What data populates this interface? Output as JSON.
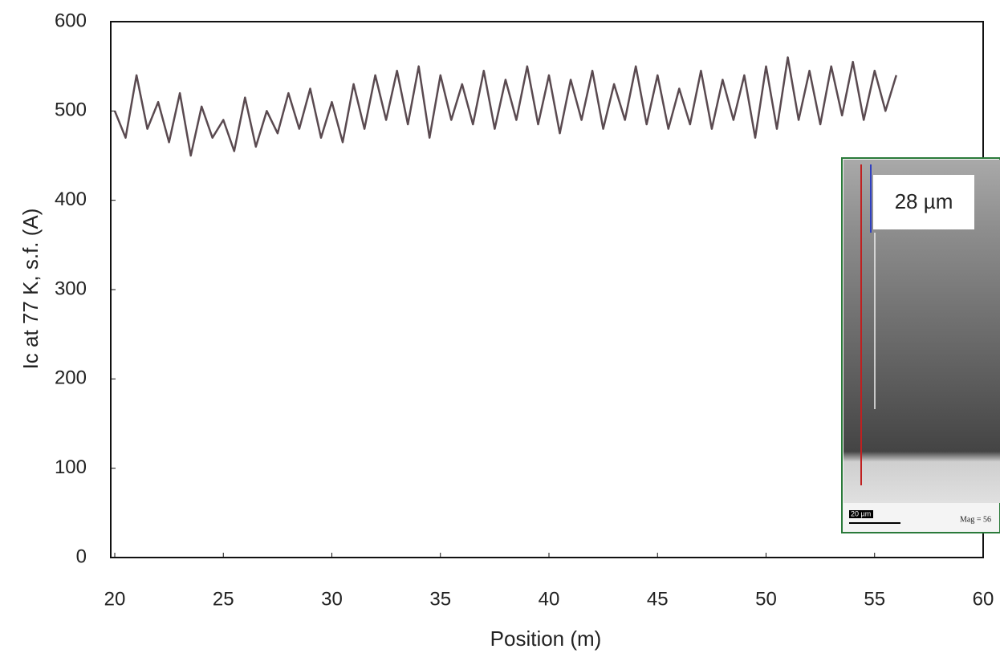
{
  "chart_data": {
    "type": "line",
    "x_label": "Position (m)",
    "y_label": "Ic at 77 K, s.f. (A)",
    "x": [
      20,
      20.5,
      21,
      21.5,
      22,
      22.5,
      23,
      23.5,
      24,
      24.5,
      25,
      25.5,
      26,
      26.5,
      27,
      27.5,
      28,
      28.5,
      29,
      29.5,
      30,
      30.5,
      31,
      31.5,
      32,
      32.5,
      33,
      33.5,
      34,
      34.5,
      35,
      35.5,
      36,
      36.5,
      37,
      37.5,
      38,
      38.5,
      39,
      39.5,
      40,
      40.5,
      41,
      41.5,
      42,
      42.5,
      43,
      43.5,
      44,
      44.5,
      45,
      45.5,
      46,
      46.5,
      47,
      47.5,
      48,
      48.5,
      49,
      49.5,
      50,
      50.5,
      51,
      51.5,
      52,
      52.5,
      53,
      53.5,
      54,
      54.5,
      55,
      55.5,
      56
    ],
    "series": [
      {
        "color": "#5a4a50",
        "values": [
          500,
          470,
          540,
          480,
          510,
          465,
          520,
          450,
          505,
          470,
          490,
          455,
          515,
          460,
          500,
          475,
          520,
          480,
          525,
          470,
          510,
          465,
          530,
          480,
          540,
          490,
          545,
          485,
          550,
          470,
          540,
          490,
          530,
          485,
          545,
          480,
          535,
          490,
          550,
          485,
          540,
          475,
          535,
          490,
          545,
          480,
          530,
          490,
          550,
          485,
          540,
          480,
          525,
          485,
          545,
          480,
          535,
          490,
          540,
          470,
          550,
          480,
          560,
          490,
          545,
          485,
          550,
          495,
          555,
          490,
          545,
          500,
          540
        ]
      }
    ],
    "xlim": [
      20,
      60
    ],
    "xticks": [
      20,
      25,
      30,
      35,
      40,
      45,
      50,
      55,
      60
    ],
    "ylim": [
      0,
      600
    ],
    "yticks": [
      0,
      100,
      200,
      300,
      400,
      500,
      600
    ],
    "inset": {
      "label": "28 µm",
      "scale_bar": "20 µm",
      "magnification": "Mag =  56"
    }
  }
}
